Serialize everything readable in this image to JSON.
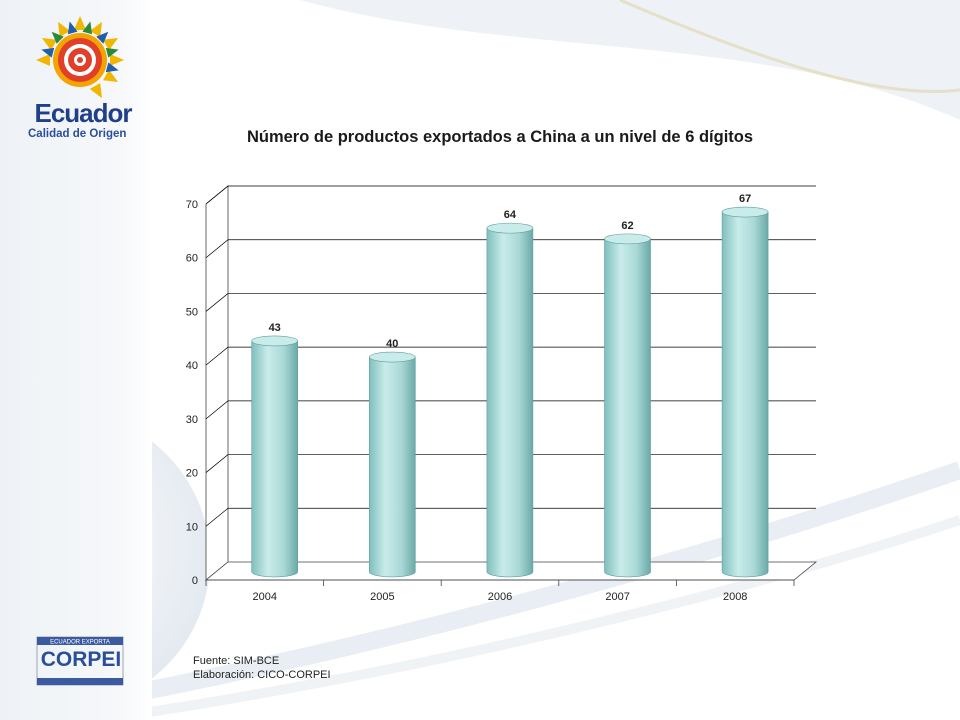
{
  "branding": {
    "ecuador_wordmark": "Ecuador",
    "ecuador_tagline": "Calidad de Origen",
    "corpei_wordmark": "CORPEI",
    "corpei_small": "ECUADOR EXPORTA"
  },
  "colors": {
    "bar_fill": "#a9d8d6",
    "bar_top": "#c9ecea",
    "bar_edge": "#5f9ea0",
    "grid": "#000000"
  },
  "footer": {
    "source": "Fuente: SIM-BCE",
    "elaboration": "Elaboración: CICO-CORPEI"
  },
  "chart_data": {
    "type": "bar",
    "title": "Número de productos exportados a China a un nivel de 6 dígitos",
    "categories": [
      "2004",
      "2005",
      "2006",
      "2007",
      "2008"
    ],
    "values": [
      43,
      40,
      64,
      62,
      67
    ],
    "value_labels": [
      "43",
      "40",
      "64",
      "62",
      "67"
    ],
    "ylim": [
      0,
      70
    ],
    "yticks": [
      "0",
      "10",
      "20",
      "30",
      "40",
      "50",
      "60",
      "70"
    ],
    "xlabel": "",
    "ylabel": "",
    "grid": true,
    "legend": "none",
    "style": "3d-cylinder"
  }
}
